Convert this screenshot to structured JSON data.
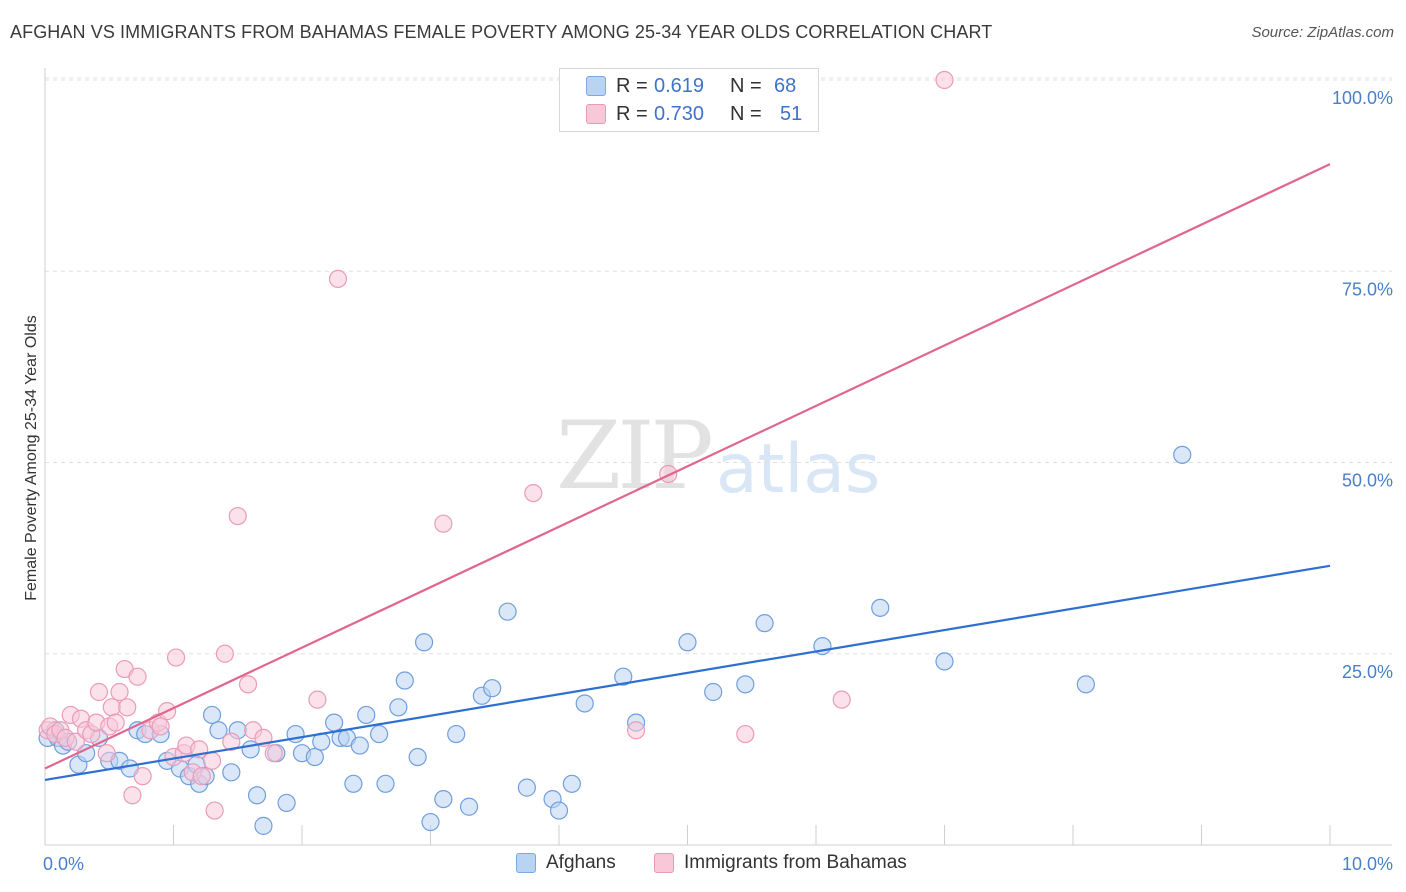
{
  "title": "AFGHAN VS IMMIGRANTS FROM BAHAMAS FEMALE POVERTY AMONG 25-34 YEAR OLDS CORRELATION CHART",
  "source": "Source: ZipAtlas.com",
  "watermark": {
    "zip": "ZIP",
    "atlas": "atlas"
  },
  "legend": {
    "rows": [
      {
        "r_label": "R =",
        "r_value": "0.619",
        "n_label": "N =",
        "n_value": "68"
      },
      {
        "r_label": "R =",
        "r_value": "0.730",
        "n_label": "N =",
        "n_value": "51"
      }
    ]
  },
  "bottom_legend": [
    "Afghans",
    "Immigrants from Bahamas"
  ],
  "colors": {
    "afghans_fill": "#b9d3f3",
    "afghans_stroke": "#6f9fde",
    "afghans_line": "#2f6fd0",
    "bahamas_fill": "#f8c8d8",
    "bahamas_stroke": "#eb9bb8",
    "bahamas_line": "#e0668f",
    "tick_text": "#4a7fc8",
    "grid": "#e0e0e0"
  },
  "chart_data": {
    "type": "scatter",
    "title": "AFGHAN VS IMMIGRANTS FROM BAHAMAS FEMALE POVERTY AMONG 25-34 YEAR OLDS CORRELATION CHART",
    "xlabel": "",
    "ylabel": "Female Poverty Among 25-34 Year Olds",
    "xlim": [
      0,
      10
    ],
    "ylim": [
      0,
      100
    ],
    "x_tick_labels": [
      "0.0%",
      "10.0%"
    ],
    "y_tick_values": [
      25,
      50,
      75,
      100
    ],
    "y_tick_labels": [
      "25.0%",
      "50.0%",
      "75.0%",
      "100.0%"
    ],
    "series": [
      {
        "name": "Afghans",
        "R": 0.619,
        "N": 68,
        "trend": {
          "x": [
            0,
            10
          ],
          "y": [
            8.5,
            36.5
          ]
        },
        "points": [
          {
            "x": 0.02,
            "y": 14.0
          },
          {
            "x": 0.08,
            "y": 15.0
          },
          {
            "x": 0.1,
            "y": 14.0
          },
          {
            "x": 0.14,
            "y": 13.0
          },
          {
            "x": 0.18,
            "y": 13.5
          },
          {
            "x": 0.26,
            "y": 10.5
          },
          {
            "x": 0.32,
            "y": 12.0
          },
          {
            "x": 0.42,
            "y": 14.0
          },
          {
            "x": 0.5,
            "y": 11.0
          },
          {
            "x": 0.58,
            "y": 11.0
          },
          {
            "x": 0.66,
            "y": 10.0
          },
          {
            "x": 0.72,
            "y": 15.0
          },
          {
            "x": 0.78,
            "y": 14.5
          },
          {
            "x": 0.9,
            "y": 14.5
          },
          {
            "x": 0.95,
            "y": 11.0
          },
          {
            "x": 1.05,
            "y": 10.0
          },
          {
            "x": 1.12,
            "y": 9.0
          },
          {
            "x": 1.18,
            "y": 10.5
          },
          {
            "x": 1.2,
            "y": 8.0
          },
          {
            "x": 1.25,
            "y": 9.0
          },
          {
            "x": 1.3,
            "y": 17.0
          },
          {
            "x": 1.35,
            "y": 15.0
          },
          {
            "x": 1.45,
            "y": 9.5
          },
          {
            "x": 1.5,
            "y": 15.0
          },
          {
            "x": 1.6,
            "y": 12.5
          },
          {
            "x": 1.65,
            "y": 6.5
          },
          {
            "x": 1.7,
            "y": 2.5
          },
          {
            "x": 1.8,
            "y": 12.0
          },
          {
            "x": 1.88,
            "y": 5.5
          },
          {
            "x": 1.95,
            "y": 14.5
          },
          {
            "x": 2.0,
            "y": 12.0
          },
          {
            "x": 2.1,
            "y": 11.5
          },
          {
            "x": 2.15,
            "y": 13.5
          },
          {
            "x": 2.25,
            "y": 16.0
          },
          {
            "x": 2.3,
            "y": 14.0
          },
          {
            "x": 2.35,
            "y": 14.0
          },
          {
            "x": 2.4,
            "y": 8.0
          },
          {
            "x": 2.45,
            "y": 13.0
          },
          {
            "x": 2.5,
            "y": 17.0
          },
          {
            "x": 2.6,
            "y": 14.5
          },
          {
            "x": 2.65,
            "y": 8.0
          },
          {
            "x": 2.75,
            "y": 18.0
          },
          {
            "x": 2.8,
            "y": 21.5
          },
          {
            "x": 2.9,
            "y": 11.5
          },
          {
            "x": 2.95,
            "y": 26.5
          },
          {
            "x": 3.0,
            "y": 3.0
          },
          {
            "x": 3.1,
            "y": 6.0
          },
          {
            "x": 3.2,
            "y": 14.5
          },
          {
            "x": 3.3,
            "y": 5.0
          },
          {
            "x": 3.4,
            "y": 19.5
          },
          {
            "x": 3.48,
            "y": 20.5
          },
          {
            "x": 3.6,
            "y": 30.5
          },
          {
            "x": 3.75,
            "y": 7.5
          },
          {
            "x": 3.95,
            "y": 6.0
          },
          {
            "x": 4.0,
            "y": 4.5
          },
          {
            "x": 4.1,
            "y": 8.0
          },
          {
            "x": 4.2,
            "y": 18.5
          },
          {
            "x": 4.5,
            "y": 22.0
          },
          {
            "x": 4.6,
            "y": 16.0
          },
          {
            "x": 5.0,
            "y": 26.5
          },
          {
            "x": 5.2,
            "y": 20.0
          },
          {
            "x": 5.45,
            "y": 21.0
          },
          {
            "x": 5.6,
            "y": 29.0
          },
          {
            "x": 6.05,
            "y": 26.0
          },
          {
            "x": 6.5,
            "y": 31.0
          },
          {
            "x": 7.0,
            "y": 24.0
          },
          {
            "x": 8.1,
            "y": 21.0
          },
          {
            "x": 8.85,
            "y": 51.0
          }
        ]
      },
      {
        "name": "Immigrants from Bahamas",
        "R": 0.73,
        "N": 51,
        "trend": {
          "x": [
            0,
            10
          ],
          "y": [
            10.0,
            89.0
          ]
        },
        "points": [
          {
            "x": 0.02,
            "y": 15.0
          },
          {
            "x": 0.04,
            "y": 15.5
          },
          {
            "x": 0.08,
            "y": 14.5
          },
          {
            "x": 0.12,
            "y": 15.0
          },
          {
            "x": 0.16,
            "y": 14.0
          },
          {
            "x": 0.2,
            "y": 17.0
          },
          {
            "x": 0.24,
            "y": 13.5
          },
          {
            "x": 0.28,
            "y": 16.5
          },
          {
            "x": 0.32,
            "y": 15.0
          },
          {
            "x": 0.36,
            "y": 14.5
          },
          {
            "x": 0.4,
            "y": 16.0
          },
          {
            "x": 0.42,
            "y": 20.0
          },
          {
            "x": 0.48,
            "y": 12.0
          },
          {
            "x": 0.5,
            "y": 15.5
          },
          {
            "x": 0.52,
            "y": 18.0
          },
          {
            "x": 0.55,
            "y": 16.0
          },
          {
            "x": 0.58,
            "y": 20.0
          },
          {
            "x": 0.62,
            "y": 23.0
          },
          {
            "x": 0.64,
            "y": 18.0
          },
          {
            "x": 0.68,
            "y": 6.5
          },
          {
            "x": 0.72,
            "y": 22.0
          },
          {
            "x": 0.76,
            "y": 9.0
          },
          {
            "x": 0.82,
            "y": 15.0
          },
          {
            "x": 0.88,
            "y": 16.0
          },
          {
            "x": 0.9,
            "y": 15.5
          },
          {
            "x": 0.95,
            "y": 17.5
          },
          {
            "x": 1.0,
            "y": 11.5
          },
          {
            "x": 1.02,
            "y": 24.5
          },
          {
            "x": 1.08,
            "y": 12.0
          },
          {
            "x": 1.1,
            "y": 13.0
          },
          {
            "x": 1.15,
            "y": 9.5
          },
          {
            "x": 1.2,
            "y": 12.5
          },
          {
            "x": 1.22,
            "y": 9.0
          },
          {
            "x": 1.3,
            "y": 11.0
          },
          {
            "x": 1.32,
            "y": 4.5
          },
          {
            "x": 1.4,
            "y": 25.0
          },
          {
            "x": 1.45,
            "y": 13.5
          },
          {
            "x": 1.5,
            "y": 43.0
          },
          {
            "x": 1.58,
            "y": 21.0
          },
          {
            "x": 1.62,
            "y": 15.0
          },
          {
            "x": 1.7,
            "y": 14.0
          },
          {
            "x": 1.78,
            "y": 12.0
          },
          {
            "x": 2.12,
            "y": 19.0
          },
          {
            "x": 2.28,
            "y": 74.0
          },
          {
            "x": 3.1,
            "y": 42.0
          },
          {
            "x": 3.8,
            "y": 46.0
          },
          {
            "x": 4.6,
            "y": 15.0
          },
          {
            "x": 4.85,
            "y": 48.5
          },
          {
            "x": 5.45,
            "y": 14.5
          },
          {
            "x": 6.2,
            "y": 19.0
          },
          {
            "x": 7.0,
            "y": 100.0
          }
        ]
      }
    ]
  }
}
